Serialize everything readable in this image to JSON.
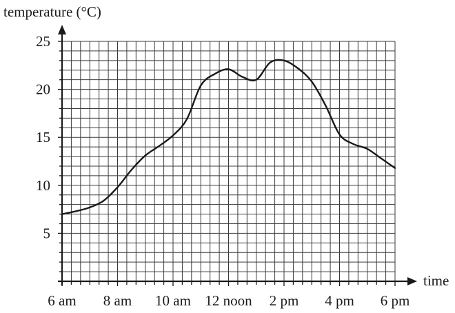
{
  "chart_data": {
    "type": "line",
    "ylabel": "temperature (°C)",
    "xlabel": "time",
    "x_tick_labels": [
      "6 am",
      "8 am",
      "10 am",
      "12 noon",
      "2 pm",
      "4 pm",
      "6 pm"
    ],
    "x_tick_hours": [
      6,
      8,
      10,
      12,
      14,
      16,
      18
    ],
    "y_tick_labels": [
      "5",
      "10",
      "15",
      "20",
      "25"
    ],
    "y_tick_values": [
      5,
      10,
      15,
      20,
      25
    ],
    "xlim": [
      6,
      18
    ],
    "ylim": [
      0,
      25
    ],
    "grid": true,
    "series": [
      {
        "x": [
          6,
          6.5,
          7,
          7.5,
          8,
          8.5,
          9,
          9.5,
          10,
          10.5,
          11,
          11.5,
          12,
          12.5,
          13,
          13.5,
          14,
          14.5,
          15,
          15.5,
          16,
          16.5,
          17,
          17.5,
          18
        ],
        "y": [
          7,
          7.3,
          7.7,
          8.4,
          9.8,
          11.6,
          13.1,
          14.1,
          15.2,
          16.9,
          20.4,
          21.6,
          22.1,
          21.3,
          21,
          22.8,
          23,
          22.2,
          20.8,
          18.3,
          15.3,
          14.3,
          13.8,
          12.8,
          11.8
        ]
      }
    ]
  }
}
